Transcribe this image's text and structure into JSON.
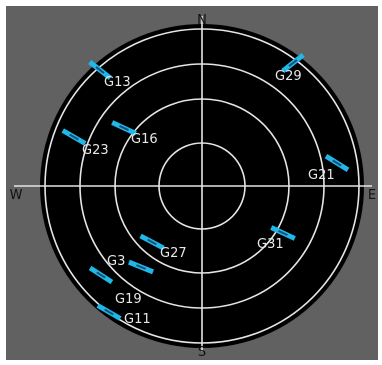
{
  "skyplot": {
    "compass": {
      "north": "N",
      "south": "S",
      "east": "E",
      "west": "W"
    },
    "satellites": [
      {
        "id": "G13",
        "marker_icon": "satellite-marker-icon"
      },
      {
        "id": "G29",
        "marker_icon": "satellite-marker-icon"
      },
      {
        "id": "G16",
        "marker_icon": "satellite-marker-icon"
      },
      {
        "id": "G23",
        "marker_icon": "satellite-marker-icon"
      },
      {
        "id": "G21",
        "marker_icon": "satellite-marker-icon"
      },
      {
        "id": "G31",
        "marker_icon": "satellite-marker-icon"
      },
      {
        "id": "G27",
        "marker_icon": "satellite-marker-icon"
      },
      {
        "id": "G3",
        "marker_icon": "satellite-marker-icon"
      },
      {
        "id": "G19",
        "marker_icon": "satellite-marker-icon"
      },
      {
        "id": "G11",
        "marker_icon": "satellite-marker-icon"
      }
    ],
    "colors": {
      "background": "#616161",
      "disk": "#000000",
      "rings": "#e6e6e6",
      "marker": "#20b8e8",
      "marker_core": "#1a4f7a",
      "label": "#e8e8e8",
      "compass_label": "#111111"
    }
  }
}
